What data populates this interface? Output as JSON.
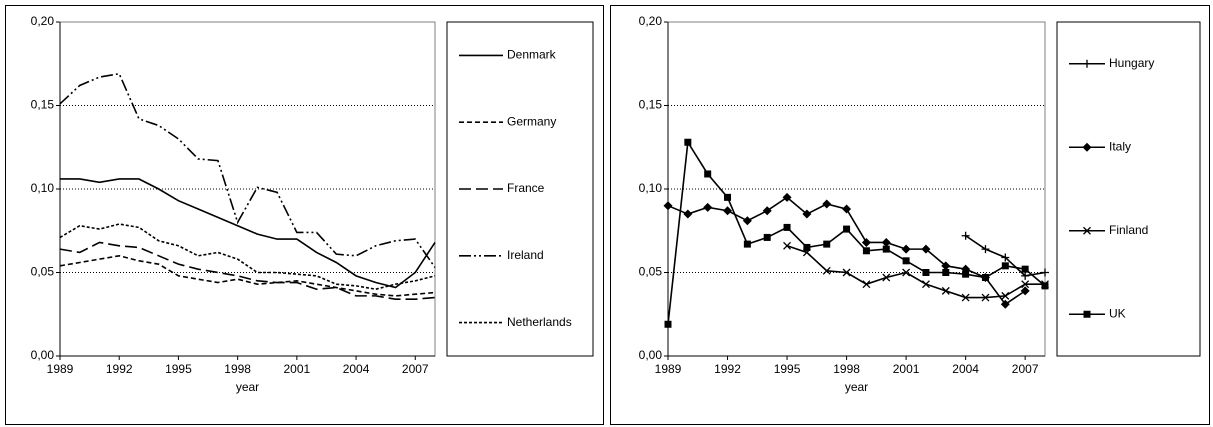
{
  "chart_data": [
    {
      "type": "line",
      "x_label": "year",
      "x": [
        1989,
        1990,
        1991,
        1992,
        1993,
        1994,
        1995,
        1996,
        1997,
        1998,
        1999,
        2000,
        2001,
        2002,
        2003,
        2004,
        2005,
        2006,
        2007,
        2008
      ],
      "xlim": [
        1989,
        2008
      ],
      "xticks": [
        1989,
        1992,
        1995,
        1998,
        2001,
        2004,
        2007
      ],
      "ylim": [
        0,
        0.2
      ],
      "yticks": [
        {
          "value": 0,
          "label": "0,00"
        },
        {
          "value": 0.05,
          "label": "0,05"
        },
        {
          "value": 0.1,
          "label": "0,10"
        },
        {
          "value": 0.15,
          "label": "0,15"
        },
        {
          "value": 0.2,
          "label": "0,20"
        }
      ],
      "grid": true,
      "legend": "right",
      "series": [
        {
          "name": "Denmark",
          "color": "#000000",
          "style": "solid",
          "values": [
            0.106,
            0.106,
            0.104,
            0.106,
            0.106,
            0.1,
            0.093,
            0.088,
            0.083,
            0.078,
            0.073,
            0.07,
            0.07,
            0.062,
            0.056,
            0.048,
            0.044,
            0.041,
            0.05,
            0.068
          ]
        },
        {
          "name": "Germany",
          "color": "#000000",
          "style": "dashed",
          "values": [
            0.054,
            0.056,
            0.058,
            0.06,
            0.057,
            0.055,
            0.048,
            0.046,
            0.044,
            0.046,
            0.043,
            0.044,
            0.045,
            0.043,
            0.041,
            0.039,
            0.037,
            0.036,
            0.037,
            0.038
          ]
        },
        {
          "name": "France",
          "color": "#000000",
          "style": "longdash",
          "values": [
            0.064,
            0.062,
            0.068,
            0.066,
            0.065,
            0.06,
            0.055,
            0.052,
            0.05,
            0.048,
            0.045,
            0.044,
            0.044,
            0.04,
            0.041,
            0.036,
            0.036,
            0.034,
            0.034,
            0.035
          ]
        },
        {
          "name": "Ireland",
          "color": "#000000",
          "style": "dashdotdot",
          "values": [
            0.151,
            0.162,
            0.167,
            0.169,
            0.142,
            0.138,
            0.13,
            0.118,
            0.117,
            0.08,
            0.101,
            0.098,
            0.074,
            0.074,
            0.061,
            0.06,
            0.066,
            0.069,
            0.07,
            0.053
          ]
        },
        {
          "name": "Netherlands",
          "color": "#000000",
          "style": "shortdash",
          "values": [
            0.071,
            0.078,
            0.076,
            0.079,
            0.077,
            0.069,
            0.066,
            0.06,
            0.062,
            0.058,
            0.05,
            0.05,
            0.049,
            0.048,
            0.043,
            0.042,
            0.04,
            0.043,
            0.045,
            0.048
          ]
        }
      ]
    },
    {
      "type": "line",
      "x_label": "year",
      "x": [
        1989,
        1990,
        1991,
        1992,
        1993,
        1994,
        1995,
        1996,
        1997,
        1998,
        1999,
        2000,
        2001,
        2002,
        2003,
        2004,
        2005,
        2006,
        2007,
        2008
      ],
      "xlim": [
        1989,
        2008
      ],
      "xticks": [
        1989,
        1992,
        1995,
        1998,
        2001,
        2004,
        2007
      ],
      "ylim": [
        0,
        0.2
      ],
      "yticks": [
        {
          "value": 0,
          "label": "0,00"
        },
        {
          "value": 0.05,
          "label": "0,05"
        },
        {
          "value": 0.1,
          "label": "0,10"
        },
        {
          "value": 0.15,
          "label": "0,15"
        },
        {
          "value": 0.2,
          "label": "0,20"
        }
      ],
      "grid": true,
      "legend": "right",
      "series": [
        {
          "name": "Hungary",
          "color": "#000000",
          "style": "solid",
          "marker": "plus",
          "values": [
            null,
            null,
            null,
            null,
            null,
            null,
            null,
            null,
            null,
            null,
            null,
            null,
            null,
            null,
            null,
            0.072,
            0.064,
            0.059,
            0.048,
            0.05
          ]
        },
        {
          "name": "Italy",
          "color": "#000000",
          "style": "solid",
          "marker": "diamond",
          "values": [
            0.09,
            0.085,
            0.089,
            0.087,
            0.081,
            0.087,
            0.095,
            0.085,
            0.091,
            0.088,
            0.068,
            0.068,
            0.064,
            0.064,
            0.054,
            0.052,
            0.047,
            0.031,
            0.039,
            null
          ]
        },
        {
          "name": "Finland",
          "color": "#000000",
          "style": "solid",
          "marker": "x",
          "values": [
            null,
            null,
            null,
            null,
            null,
            null,
            0.066,
            0.062,
            0.051,
            0.05,
            0.043,
            0.047,
            0.05,
            0.043,
            0.039,
            0.035,
            0.035,
            0.036,
            0.043,
            0.043
          ]
        },
        {
          "name": "UK",
          "color": "#000000",
          "style": "solid",
          "marker": "square",
          "values": [
            0.019,
            0.128,
            0.109,
            0.095,
            0.067,
            0.071,
            0.077,
            0.065,
            0.067,
            0.076,
            0.063,
            0.064,
            0.057,
            0.05,
            0.05,
            0.049,
            0.047,
            0.054,
            0.052,
            0.042
          ]
        }
      ]
    }
  ]
}
